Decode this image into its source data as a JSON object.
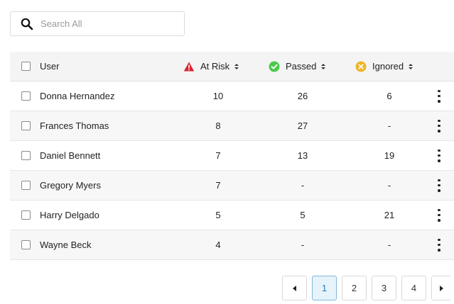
{
  "search": {
    "placeholder": "Search All",
    "icon": "search-icon"
  },
  "table": {
    "headers": {
      "user": "User",
      "at_risk": "At Risk",
      "passed": "Passed",
      "ignored": "Ignored"
    },
    "header_icons": {
      "at_risk": "warning-triangle-icon",
      "passed": "check-circle-icon",
      "ignored": "x-circle-icon"
    },
    "colors": {
      "at_risk": "#d9232e",
      "passed": "#4cc94c",
      "ignored": "#f0b429"
    },
    "rows": [
      {
        "user": "Donna Hernandez",
        "at_risk": "10",
        "passed": "26",
        "ignored": "6"
      },
      {
        "user": "Frances Thomas",
        "at_risk": "8",
        "passed": "27",
        "ignored": "-"
      },
      {
        "user": "Daniel Bennett",
        "at_risk": "7",
        "passed": "13",
        "ignored": "19"
      },
      {
        "user": "Gregory Myers",
        "at_risk": "7",
        "passed": "-",
        "ignored": "-"
      },
      {
        "user": "Harry Delgado",
        "at_risk": "5",
        "passed": "5",
        "ignored": "21"
      },
      {
        "user": "Wayne Beck",
        "at_risk": "4",
        "passed": "-",
        "ignored": "-"
      }
    ]
  },
  "pagination": {
    "pages": [
      "1",
      "2",
      "3",
      "4"
    ],
    "current": "1"
  }
}
